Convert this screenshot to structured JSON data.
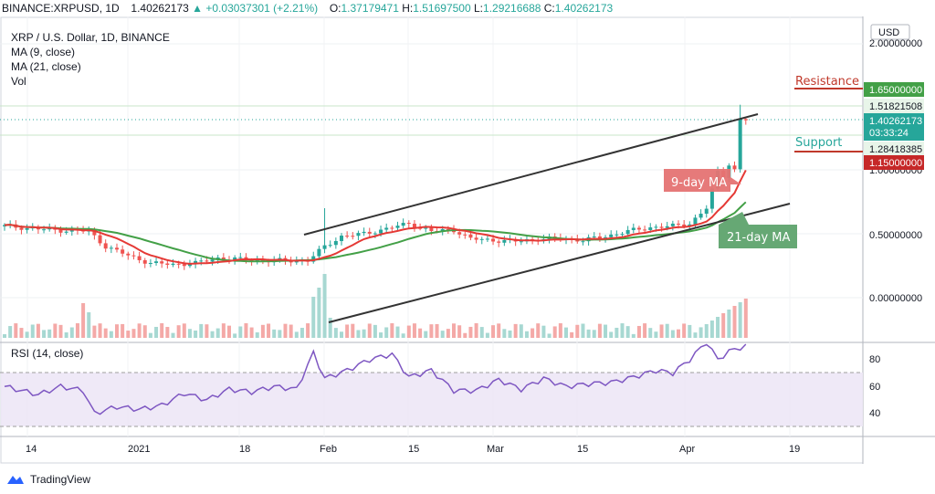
{
  "header": {
    "symbol": "BINANCE:XRPUSD, 1D",
    "last": "1.40262173",
    "change": "+0.03037301 (+2.21%)",
    "o_label": "O:",
    "o": "1.37179471",
    "h_label": "H:",
    "h": "1.51697500",
    "l_label": "L:",
    "l": "1.29216688",
    "c_label": "C:",
    "c": "1.40262173"
  },
  "legend": {
    "title": "XRP / U.S. Dollar, 1D, BINANCE",
    "ma9": "MA (9, close)",
    "ma21": "MA (21, close)",
    "vol": "Vol"
  },
  "currency": "USD",
  "price_axis": [
    "2.00000000",
    "1.00000000",
    "0.50000000",
    "0.00000000"
  ],
  "price_tags": {
    "resistance_level": "1.65000000",
    "high_line": "1.51821508",
    "current": "1.40262173",
    "countdown": "03:33:24",
    "low_line": "1.28418385",
    "support_level": "1.15000000"
  },
  "annotations": {
    "resistance": "Resistance",
    "support": "Support",
    "ma9_label": "9-day MA",
    "ma21_label": "21-day MA"
  },
  "rsi": {
    "title": "RSI (14, close)",
    "axis": [
      "80",
      "60",
      "40"
    ]
  },
  "time_axis": [
    "14",
    "2021",
    "18",
    "Feb",
    "15",
    "Mar",
    "15",
    "Apr",
    "19"
  ],
  "branding": {
    "name": "TradingView"
  },
  "colors": {
    "up": "#26a69a",
    "down": "#ef5350",
    "ma9": "#e53935",
    "ma21": "#43a047",
    "rsi": "#7e57c2",
    "rsi_band": "#ede7f6",
    "resistance": "#c0392b",
    "support_tag": "#c62828"
  },
  "chart_data": {
    "type": "candlestick",
    "x": [
      "2020-12-14",
      "2021-01-01",
      "2021-01-18",
      "2021-02-01",
      "2021-02-15",
      "2021-03-01",
      "2021-03-15",
      "2021-04-01",
      "2021-04-19"
    ],
    "ma9_close": [
      0.56,
      0.22,
      0.3,
      0.4,
      0.55,
      0.45,
      0.45,
      0.62,
      1.0
    ],
    "ma21_close": [
      0.58,
      0.24,
      0.29,
      0.34,
      0.53,
      0.48,
      0.45,
      0.56,
      0.74
    ],
    "rsi_14": [
      50,
      33,
      45,
      78,
      75,
      47,
      50,
      60,
      80
    ],
    "last_close": 1.40262173,
    "resistance": 1.65,
    "support": 1.15
  }
}
